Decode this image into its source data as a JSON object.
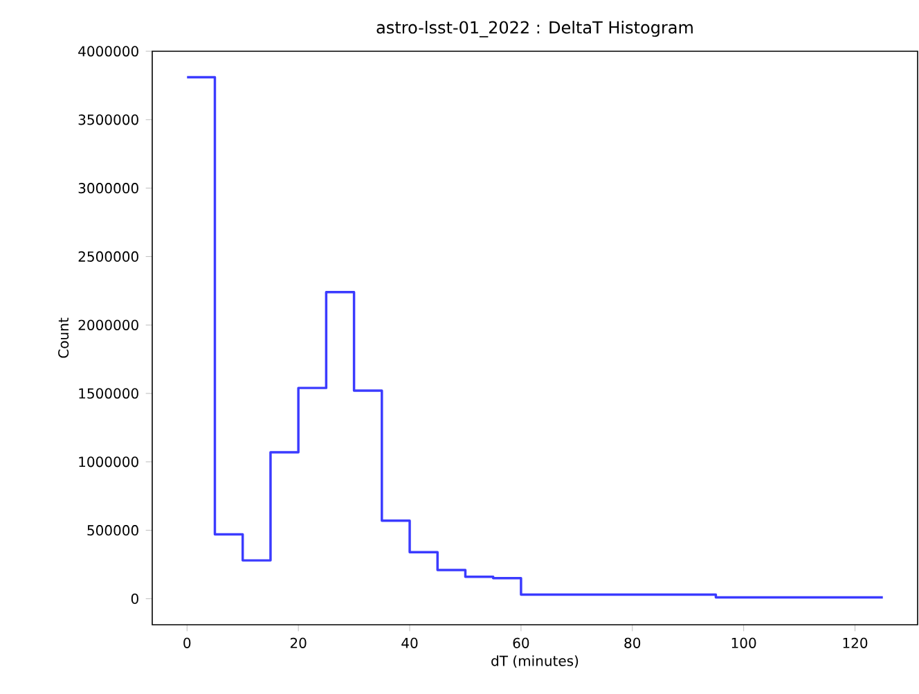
{
  "chart_data": {
    "type": "histogram",
    "title": "astro-lsst-01_2022 : DeltaT Histogram",
    "xlabel": "dT (minutes)",
    "ylabel": "Count",
    "bins": [
      0,
      5,
      10,
      15,
      20,
      25,
      30,
      35,
      40,
      45,
      50,
      55,
      60,
      95,
      125
    ],
    "values": [
      3810000,
      470000,
      280000,
      1070000,
      1540000,
      2240000,
      1520000,
      570000,
      340000,
      210000,
      160000,
      150000,
      30000,
      10000
    ],
    "color": "#3b3bff",
    "xlim": [
      -6.25,
      131.25
    ],
    "ylim": [
      -190000,
      4000000
    ],
    "xticks": [
      0,
      20,
      40,
      60,
      80,
      100,
      120
    ],
    "yticks": [
      0,
      500000,
      1000000,
      1500000,
      2000000,
      2500000,
      3000000,
      3500000,
      4000000
    ],
    "tick_labels": "xy"
  }
}
